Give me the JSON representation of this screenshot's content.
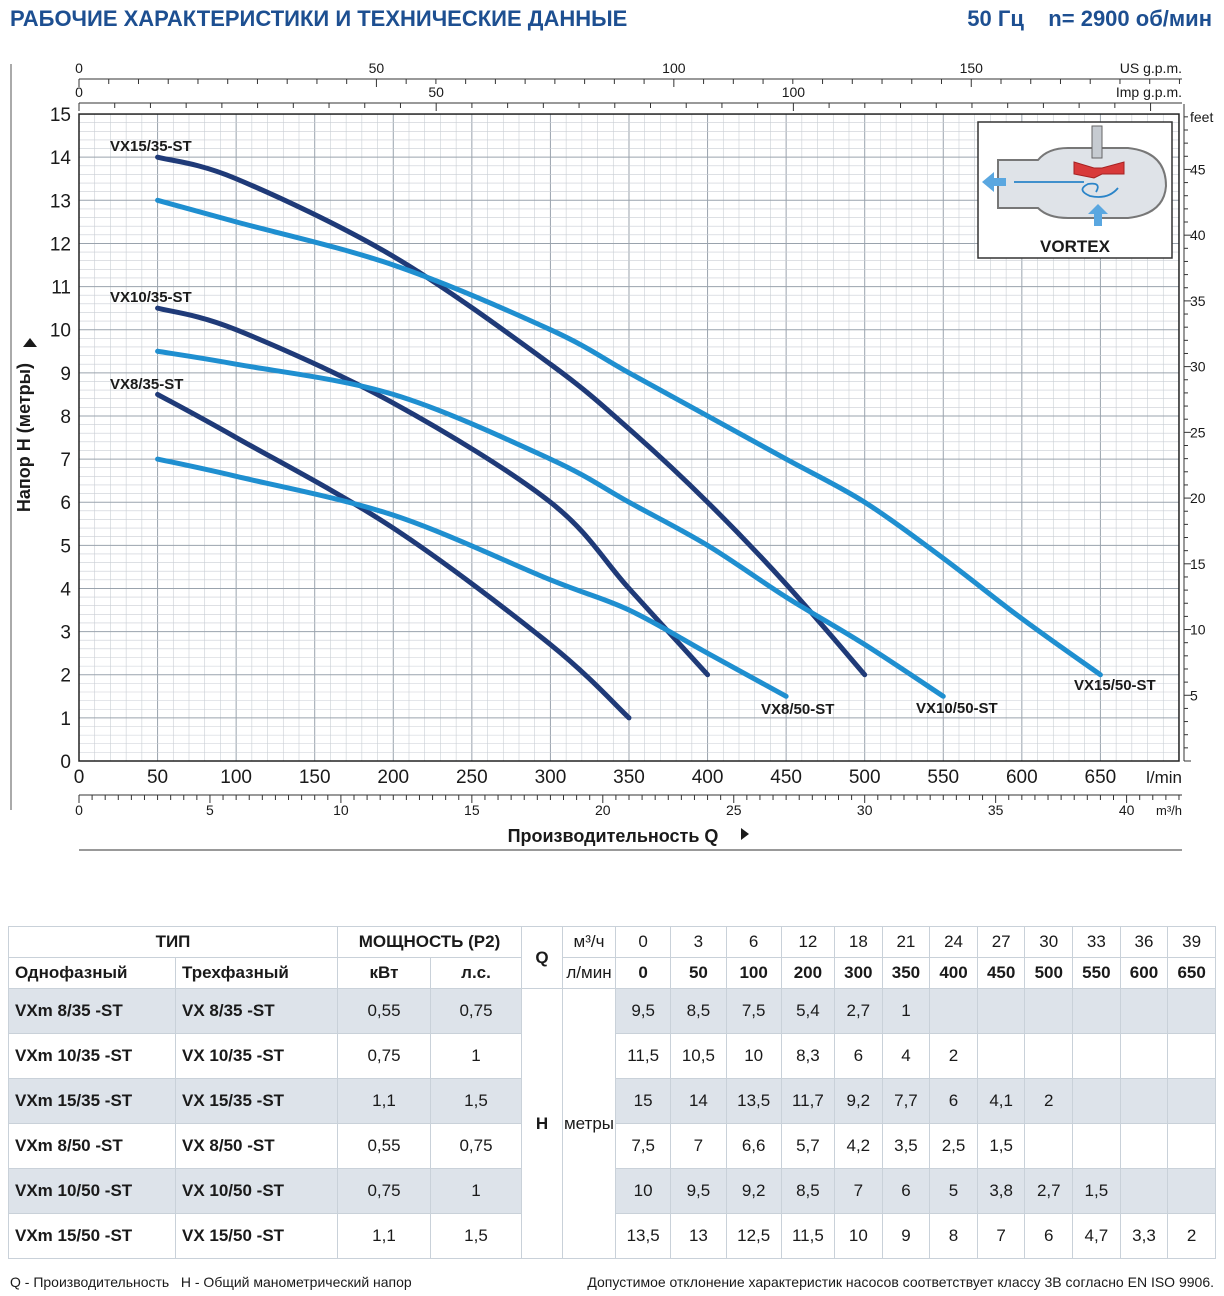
{
  "header": {
    "title": "РАБОЧИЕ ХАРАКТЕРИСТИКИ И ТЕХНИЧЕСКИЕ ДАННЫЕ",
    "spec": "50 Гц    n= 2900 об/мин"
  },
  "chart_data": {
    "type": "line",
    "ylabel": "Напор H (метры)",
    "xlabel": "Производительность Q",
    "x_unit": "l/min",
    "y_right_unit": "feet",
    "xlim": [
      0,
      700
    ],
    "ylim": [
      0,
      15
    ],
    "grid": true,
    "x_ticks": [
      0,
      50,
      100,
      150,
      200,
      250,
      300,
      350,
      400,
      450,
      500,
      550,
      600,
      650
    ],
    "y_ticks": [
      0,
      1,
      2,
      3,
      4,
      5,
      6,
      7,
      8,
      9,
      10,
      11,
      12,
      13,
      14,
      15
    ],
    "feet_ticks": [
      5,
      10,
      15,
      20,
      25,
      30,
      35,
      40,
      45
    ],
    "us_gpm": {
      "label": "US g.p.m.",
      "ticks": [
        0,
        50,
        100,
        150
      ]
    },
    "imp_gpm": {
      "label": "Imp g.p.m.",
      "ticks": [
        0,
        50,
        100
      ]
    },
    "m3h": {
      "label": "m³/h",
      "ticks": [
        0,
        5,
        10,
        15,
        20,
        25,
        30,
        35,
        40
      ]
    },
    "series": [
      {
        "name": "VX8/35-ST",
        "color": "#1f3a78",
        "x": [
          50,
          100,
          200,
          300,
          350
        ],
        "y": [
          8.5,
          7.5,
          5.4,
          2.7,
          1
        ]
      },
      {
        "name": "VX10/35-ST",
        "color": "#1f3a78",
        "x": [
          50,
          100,
          200,
          300,
          350,
          400
        ],
        "y": [
          10.5,
          10,
          8.3,
          6,
          4,
          2
        ]
      },
      {
        "name": "VX15/35-ST",
        "color": "#1f3a78",
        "x": [
          50,
          100,
          200,
          300,
          350,
          400,
          450,
          500
        ],
        "y": [
          14,
          13.5,
          11.7,
          9.2,
          7.7,
          6,
          4.1,
          2
        ]
      },
      {
        "name": "VX8/50-ST",
        "color": "#1f8fd0",
        "x": [
          50,
          100,
          200,
          300,
          350,
          400,
          450
        ],
        "y": [
          7,
          6.6,
          5.7,
          4.2,
          3.5,
          2.5,
          1.5
        ]
      },
      {
        "name": "VX10/50-ST",
        "color": "#1f8fd0",
        "x": [
          50,
          100,
          200,
          300,
          350,
          400,
          450,
          500,
          550
        ],
        "y": [
          9.5,
          9.2,
          8.5,
          7,
          6,
          5,
          3.8,
          2.7,
          1.5
        ]
      },
      {
        "name": "VX15/50-ST",
        "color": "#1f8fd0",
        "x": [
          50,
          100,
          200,
          300,
          350,
          400,
          450,
          500,
          550,
          600,
          650
        ],
        "y": [
          13,
          12.5,
          11.5,
          10,
          9,
          8,
          7,
          6,
          4.7,
          3.3,
          2
        ]
      }
    ],
    "inset_label": "VORTEX"
  },
  "table": {
    "head": {
      "type": "ТИП",
      "single": "Однофазный",
      "three": "Трехфазный",
      "power": "МОЩНОСТЬ (P2)",
      "kw": "кВт",
      "hp": "л.с.",
      "q": "Q",
      "m3h": "м³/ч",
      "lmin": "л/мин",
      "h": "H",
      "h_unit": "метры",
      "m3h_values": [
        "0",
        "3",
        "6",
        "12",
        "18",
        "21",
        "24",
        "27",
        "30",
        "33",
        "36",
        "39"
      ],
      "lmin_values": [
        "0",
        "50",
        "100",
        "200",
        "300",
        "350",
        "400",
        "450",
        "500",
        "550",
        "600",
        "650"
      ]
    },
    "rows": [
      {
        "single": "VXm 8/35   -ST",
        "three": "VX 8/35   -ST",
        "kw": "0,55",
        "hp": "0,75",
        "h": [
          "9,5",
          "8,5",
          "7,5",
          "5,4",
          "2,7",
          "1",
          "",
          "",
          "",
          "",
          "",
          ""
        ]
      },
      {
        "single": "VXm 10/35 -ST",
        "three": "VX 10/35 -ST",
        "kw": "0,75",
        "hp": "1",
        "h": [
          "11,5",
          "10,5",
          "10",
          "8,3",
          "6",
          "4",
          "2",
          "",
          "",
          "",
          "",
          ""
        ]
      },
      {
        "single": "VXm 15/35 -ST",
        "three": "VX 15/35 -ST",
        "kw": "1,1",
        "hp": "1,5",
        "h": [
          "15",
          "14",
          "13,5",
          "11,7",
          "9,2",
          "7,7",
          "6",
          "4,1",
          "2",
          "",
          "",
          ""
        ]
      },
      {
        "single": "VXm 8/50   -ST",
        "three": "VX 8/50   -ST",
        "kw": "0,55",
        "hp": "0,75",
        "h": [
          "7,5",
          "7",
          "6,6",
          "5,7",
          "4,2",
          "3,5",
          "2,5",
          "1,5",
          "",
          "",
          "",
          ""
        ]
      },
      {
        "single": "VXm 10/50 -ST",
        "three": "VX 10/50 -ST",
        "kw": "0,75",
        "hp": "1",
        "h": [
          "10",
          "9,5",
          "9,2",
          "8,5",
          "7",
          "6",
          "5",
          "3,8",
          "2,7",
          "1,5",
          "",
          ""
        ]
      },
      {
        "single": "VXm 15/50 -ST",
        "three": "VX 15/50 -ST",
        "kw": "1,1",
        "hp": "1,5",
        "h": [
          "13,5",
          "13",
          "12,5",
          "11,5",
          "10",
          "9",
          "8",
          "7",
          "6",
          "4,7",
          "3,3",
          "2"
        ]
      }
    ]
  },
  "footer": {
    "left": "Q - Производительность   H - Общий манометрический напор",
    "right": "Допустимое отклонение характеристик насосов соответствует классу 3B согласно EN ISO 9906."
  }
}
